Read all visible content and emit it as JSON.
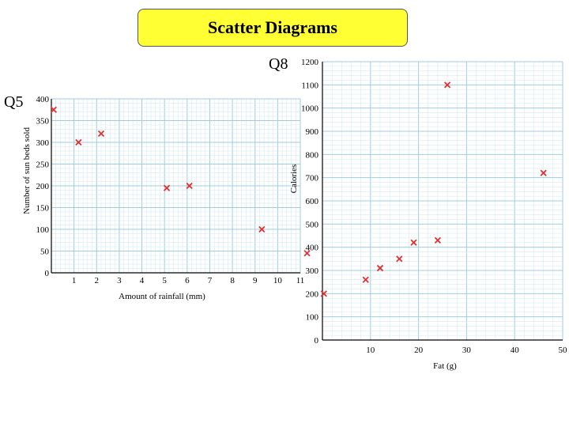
{
  "title": "Scatter Diagrams",
  "chart_data": [
    {
      "id": "q5",
      "label": "Q5",
      "type": "scatter",
      "xlabel": "Amount of rainfall (mm)",
      "ylabel": "Number of sun beds sold",
      "xlim": [
        0,
        11
      ],
      "ylim": [
        0,
        400
      ],
      "x_ticks": [
        1,
        2,
        3,
        4,
        5,
        6,
        7,
        8,
        9,
        10,
        11
      ],
      "y_ticks": [
        0,
        50,
        100,
        150,
        200,
        250,
        300,
        350,
        400
      ],
      "grid": true,
      "marker": "x",
      "marker_color": "#e03030",
      "points": [
        {
          "x": 0.1,
          "y": 375
        },
        {
          "x": 1.2,
          "y": 300
        },
        {
          "x": 2.2,
          "y": 320
        },
        {
          "x": 5.1,
          "y": 195
        },
        {
          "x": 6.1,
          "y": 200
        },
        {
          "x": 9.3,
          "y": 100
        },
        {
          "x": 11.3,
          "y": 45
        }
      ]
    },
    {
      "id": "q8",
      "label": "Q8",
      "type": "scatter",
      "xlabel": "Fat (g)",
      "ylabel": "Calories",
      "xlim": [
        0,
        50
      ],
      "ylim": [
        0,
        1200
      ],
      "x_ticks": [
        10,
        20,
        30,
        40,
        50
      ],
      "y_ticks": [
        0,
        100,
        200,
        300,
        400,
        500,
        600,
        700,
        800,
        900,
        1000,
        1100,
        1200
      ],
      "grid": true,
      "marker": "x",
      "marker_color": "#e03030",
      "points": [
        {
          "x": 0.3,
          "y": 200
        },
        {
          "x": 9,
          "y": 260
        },
        {
          "x": 12,
          "y": 310
        },
        {
          "x": 16,
          "y": 350
        },
        {
          "x": 19,
          "y": 420
        },
        {
          "x": 24,
          "y": 430
        },
        {
          "x": 26,
          "y": 1100
        },
        {
          "x": 46,
          "y": 720
        }
      ]
    }
  ]
}
